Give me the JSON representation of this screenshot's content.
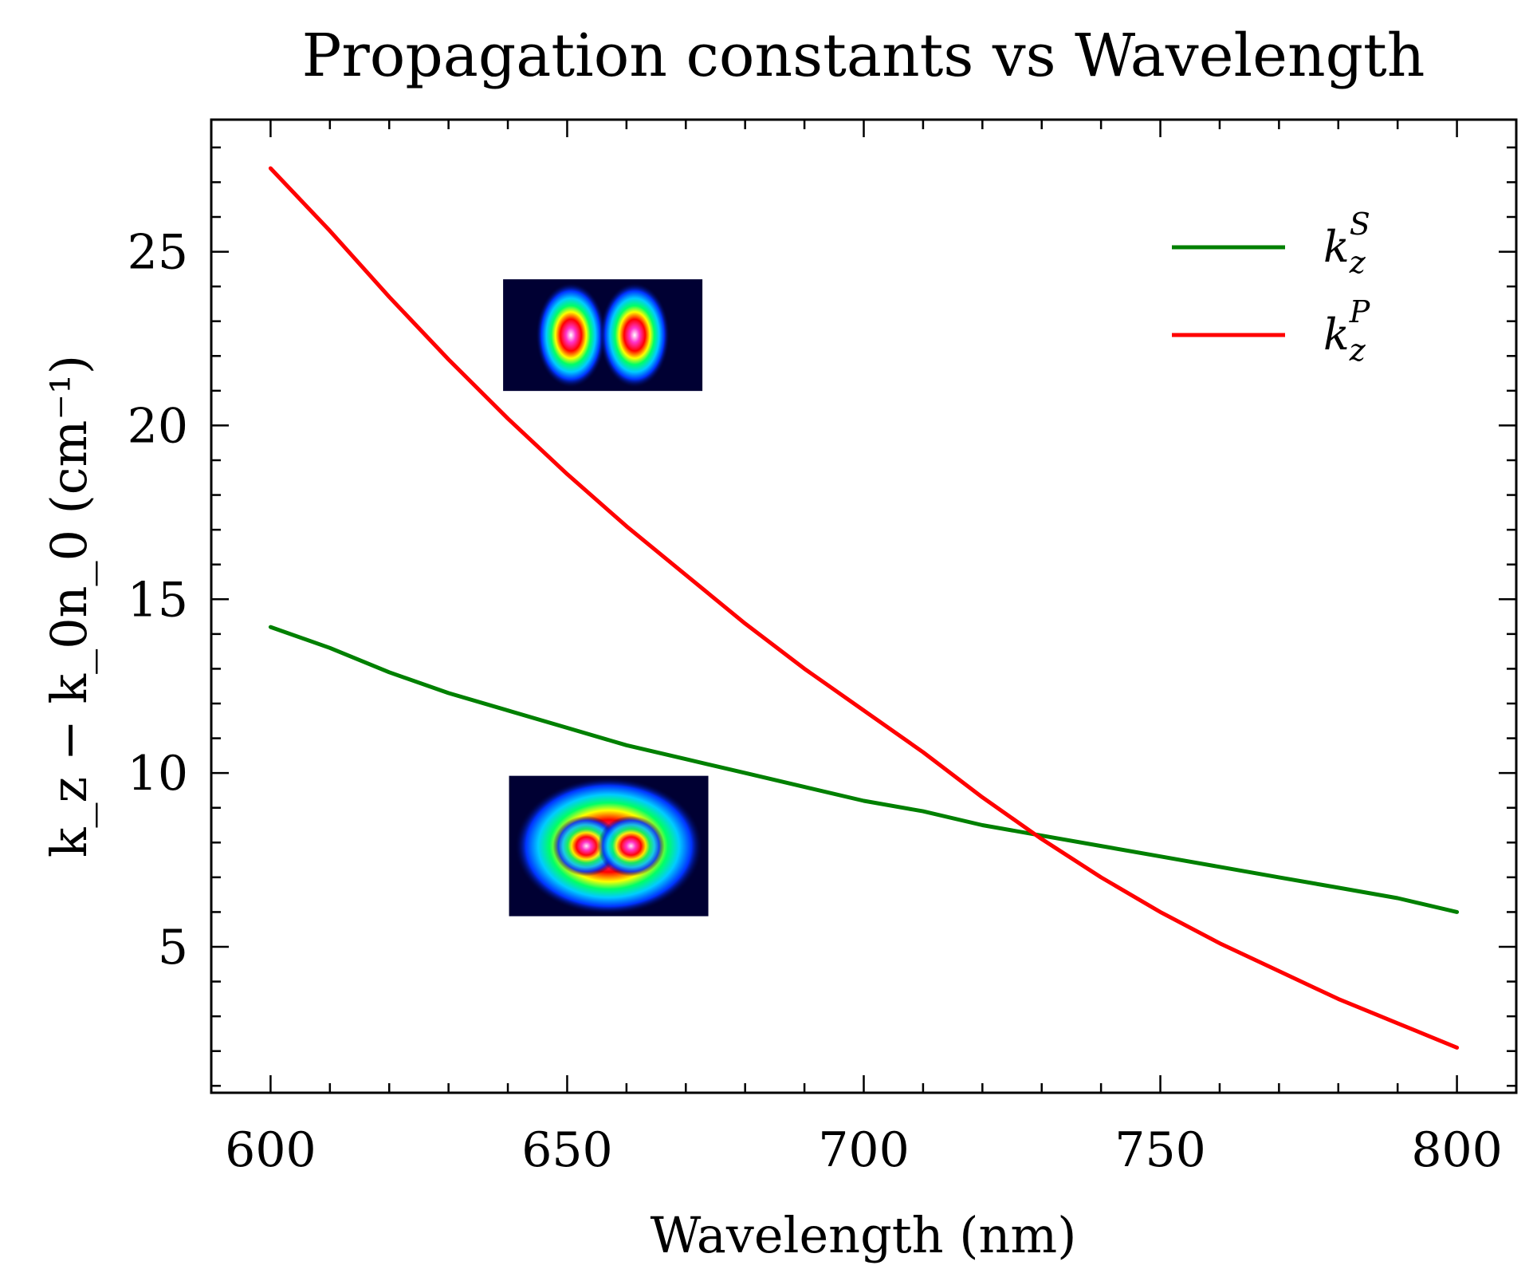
{
  "chart_data": {
    "type": "line",
    "title": "Propagation constants vs Wavelength",
    "xlabel": "Wavelength (nm)",
    "ylabel": "k_z − k_0n_0 (cm⁻¹)",
    "xlim": [
      590,
      810
    ],
    "ylim": [
      0.8,
      28.8
    ],
    "xticks": [
      600,
      650,
      700,
      750,
      800
    ],
    "yticks": [
      5,
      10,
      15,
      20,
      25
    ],
    "grid": false,
    "legend_position": "top-right",
    "x": [
      600,
      610,
      620,
      630,
      640,
      650,
      660,
      670,
      680,
      690,
      700,
      710,
      720,
      730,
      740,
      750,
      760,
      770,
      780,
      790,
      800
    ],
    "series": [
      {
        "name": "k_z^S",
        "legend_base": "k",
        "legend_sub": "z",
        "legend_sup": "S",
        "color": "#008000",
        "values": [
          14.2,
          13.6,
          12.9,
          12.3,
          11.8,
          11.3,
          10.8,
          10.4,
          10.0,
          9.6,
          9.2,
          8.9,
          8.5,
          8.2,
          7.9,
          7.6,
          7.3,
          7.0,
          6.7,
          6.4,
          6.0
        ]
      },
      {
        "name": "k_z^P",
        "legend_base": "k",
        "legend_sub": "z",
        "legend_sup": "P",
        "color": "#ff0000",
        "values": [
          27.4,
          25.6,
          23.7,
          21.9,
          20.2,
          18.6,
          17.1,
          15.7,
          14.3,
          13.0,
          11.8,
          10.6,
          9.3,
          8.1,
          7.0,
          6.0,
          5.1,
          4.3,
          3.5,
          2.8,
          2.1
        ]
      }
    ],
    "insets": [
      {
        "name": "two-lobe-mode-image",
        "x": 656,
        "y": 22.6,
        "lobes": 2
      },
      {
        "name": "merged-mode-image",
        "x": 657,
        "y": 7.9,
        "lobes": 1
      }
    ]
  }
}
